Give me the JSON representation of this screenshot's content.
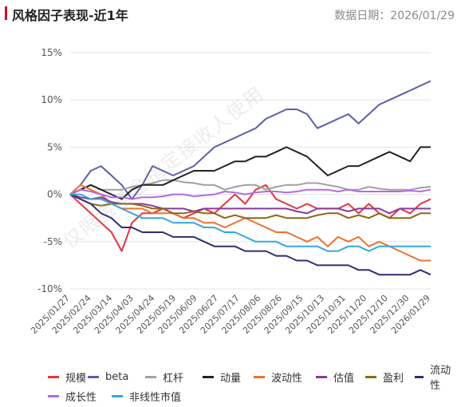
{
  "header": {
    "title": "风格因子表现-近1年",
    "date_text": "数据日期：2026/01/29",
    "accent_color": "#c8102e"
  },
  "watermark": "仅限金基金指定接收人使用",
  "chart_data": {
    "type": "line",
    "title": "风格因子表现-近1年",
    "xlabel": "",
    "ylabel": "",
    "ylim": [
      -10,
      15
    ],
    "yticks": [
      "15%",
      "10%",
      "5%",
      "0%",
      "-5%",
      "-10%"
    ],
    "y_tick_values": [
      15,
      10,
      5,
      0,
      -5,
      -10
    ],
    "grid": true,
    "legend_position": "bottom",
    "x_ticks": [
      "2025/01/27",
      "2025/02/24",
      "2025/03/14",
      "2025/04/03",
      "2025/04/24",
      "2025/05/19",
      "2025/06/09",
      "2025/06/27",
      "2025/07/17",
      "2025/08/06",
      "2025/08/26",
      "2025/09/15",
      "2025/10/13",
      "2025/10/31",
      "2025/11/20",
      "2025/12/10",
      "2025/12/30",
      "2026/01/29"
    ],
    "series": [
      {
        "name": "规模",
        "color": "#e8333f",
        "values": [
          0,
          -1,
          -2,
          -3,
          -4,
          -6,
          -3,
          -2,
          -2,
          -1.5,
          -2,
          -2.5,
          -2,
          -1.5,
          -2,
          -1,
          0,
          -1,
          0.5,
          1,
          -0.5,
          -1,
          -1.5,
          -1,
          -1.5,
          -1.5,
          -1.5,
          -1,
          -2,
          -1,
          -2,
          -2.5,
          -1.5,
          -2,
          -1,
          -0.5
        ]
      },
      {
        "name": "beta",
        "color": "#5b5ea6",
        "values": [
          0,
          1,
          2.5,
          3,
          2,
          1,
          -0.5,
          1,
          3,
          2.5,
          2,
          2.5,
          3,
          4,
          5,
          5.5,
          6,
          6.5,
          7,
          8,
          8.5,
          9,
          9,
          8.5,
          7,
          7.5,
          8,
          8.5,
          7.5,
          8.5,
          9.5,
          10,
          10.5,
          11,
          11.5,
          12
        ]
      },
      {
        "name": "杠杆",
        "color": "#a0a0a0",
        "values": [
          0,
          0.5,
          1,
          0.5,
          0.5,
          0.5,
          0.8,
          1,
          1.2,
          1.5,
          1.5,
          1.3,
          1.2,
          1,
          1,
          0.5,
          0.8,
          1,
          1,
          0.5,
          0.8,
          1,
          1,
          1.2,
          1.2,
          1,
          0.8,
          0.5,
          0.5,
          0.8,
          0.6,
          0.5,
          0.5,
          0.5,
          0.7,
          0.8
        ]
      },
      {
        "name": "动量",
        "color": "#222222",
        "values": [
          0,
          0.5,
          1,
          0.5,
          0,
          -0.5,
          0.5,
          1,
          1,
          1,
          1.5,
          2,
          2.5,
          2.5,
          2.5,
          3,
          3.5,
          3.5,
          4,
          4,
          4.5,
          5,
          4.5,
          4,
          3,
          2,
          2.5,
          3,
          3,
          3.5,
          4,
          4.5,
          4,
          3.5,
          5,
          5
        ]
      },
      {
        "name": "波动性",
        "color": "#f07030",
        "values": [
          0,
          1,
          0.5,
          0,
          -1,
          -1.5,
          -1.5,
          -1.5,
          -2,
          -2,
          -2,
          -2.5,
          -2.5,
          -3,
          -3,
          -3.5,
          -3,
          -2.5,
          -3,
          -3.5,
          -4,
          -4,
          -4.5,
          -5,
          -4.5,
          -5.5,
          -4.5,
          -5,
          -4.5,
          -5.5,
          -5,
          -5.5,
          -6,
          -6.5,
          -7,
          -7
        ]
      },
      {
        "name": "估值",
        "color": "#8a3a9a",
        "values": [
          0,
          -0.3,
          -0.5,
          -0.3,
          -0.8,
          -1,
          -1,
          -1,
          -1.2,
          -1.5,
          -1.5,
          -1.5,
          -1.8,
          -1.5,
          -1.5,
          -1.5,
          -1.5,
          -1.5,
          -1.5,
          -1.5,
          -1.5,
          -1.5,
          -1.8,
          -2,
          -1.5,
          -1.5,
          -1.5,
          -1.8,
          -1.5,
          -1.5,
          -1.5,
          -2,
          -1.5,
          -1.5,
          -1.5,
          -1.5
        ]
      },
      {
        "name": "盈利",
        "color": "#8b6914",
        "values": [
          0,
          -0.5,
          -1,
          -1.2,
          -1,
          -1,
          -1,
          -1.2,
          -1.5,
          -1.5,
          -2,
          -2,
          -1.8,
          -2,
          -2,
          -2.5,
          -2.2,
          -2.5,
          -2.5,
          -2.5,
          -2.2,
          -2.5,
          -2.5,
          -2.5,
          -2.2,
          -2,
          -2,
          -2.5,
          -2.2,
          -2.5,
          -2,
          -2.5,
          -2.5,
          -2.5,
          -2,
          -2
        ]
      },
      {
        "name": "流动性",
        "color": "#2e2f6e",
        "values": [
          0,
          -0.5,
          -1,
          -2,
          -2.5,
          -3.5,
          -3.5,
          -4,
          -4,
          -4,
          -4.5,
          -4.5,
          -4.5,
          -5,
          -5.5,
          -5.5,
          -5.5,
          -6,
          -6,
          -6,
          -6.5,
          -6.5,
          -7,
          -7,
          -7.5,
          -7.5,
          -7.5,
          -7.5,
          -8,
          -8,
          -8.5,
          -8.5,
          -8.5,
          -8.5,
          -8,
          -8.5
        ]
      },
      {
        "name": "成长性",
        "color": "#b36ae2",
        "values": [
          0,
          0.5,
          0.3,
          0,
          -0.3,
          -0.3,
          -0.5,
          -0.3,
          -0.3,
          -0.2,
          0,
          0,
          -0.2,
          -0.1,
          0,
          0.3,
          0.2,
          0,
          0.2,
          0.3,
          0.3,
          0.2,
          0.3,
          0.5,
          0.5,
          0.5,
          0.3,
          0.5,
          0.3,
          0.3,
          0.3,
          0.3,
          0.3,
          0.4,
          0.3,
          0.5
        ]
      },
      {
        "name": "非线性市值",
        "color": "#33a8e0",
        "values": [
          0,
          0,
          -0.5,
          -0.5,
          -1,
          -1.5,
          -2,
          -2.5,
          -2.5,
          -2.5,
          -3,
          -3,
          -3,
          -3.5,
          -3.5,
          -4,
          -4,
          -4.5,
          -5,
          -5,
          -5,
          -5.5,
          -5.5,
          -5.5,
          -5.5,
          -6,
          -6,
          -5.5,
          -5.5,
          -6,
          -5.5,
          -5.5,
          -5.5,
          -5.5,
          -5.5,
          -5.5
        ]
      }
    ]
  }
}
